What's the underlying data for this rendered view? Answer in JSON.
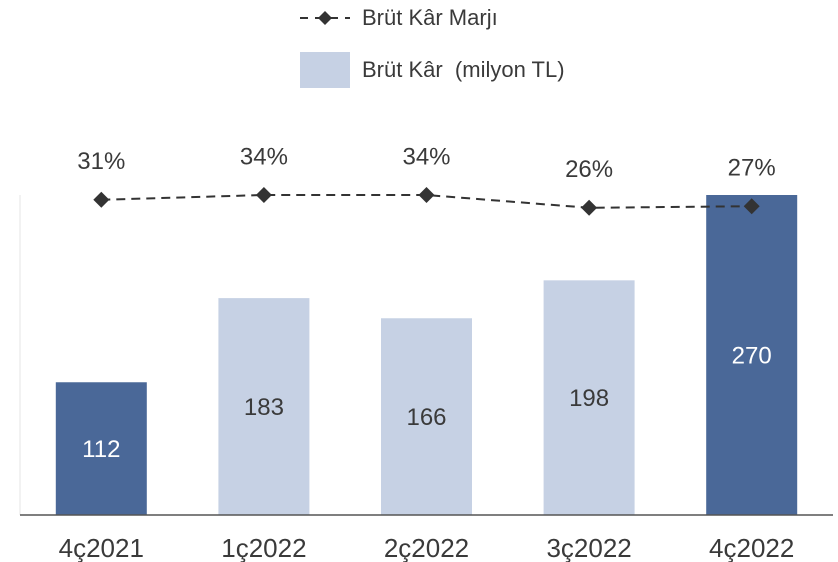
{
  "chart_data": {
    "type": "bar",
    "categories": [
      "4ç2021",
      "1ç2022",
      "2ç2022",
      "3ç2022",
      "4ç2022"
    ],
    "series": [
      {
        "name": "Brüt Kâr  (milyon TL)",
        "type": "bar",
        "color": "#c6d1e4",
        "colors": [
          "#4a6898",
          "#c6d1e4",
          "#c6d1e4",
          "#c6d1e4",
          "#4a6898"
        ],
        "values": [
          112,
          183,
          166,
          198,
          270
        ]
      },
      {
        "name": "Brüt Kâr Marjı",
        "type": "line",
        "color": "#333333",
        "dashed": true,
        "marker": "diamond",
        "values": [
          31,
          34,
          34,
          26,
          27
        ],
        "value_labels": [
          "31%",
          "34%",
          "34%",
          "26%",
          "27%"
        ]
      }
    ]
  }
}
